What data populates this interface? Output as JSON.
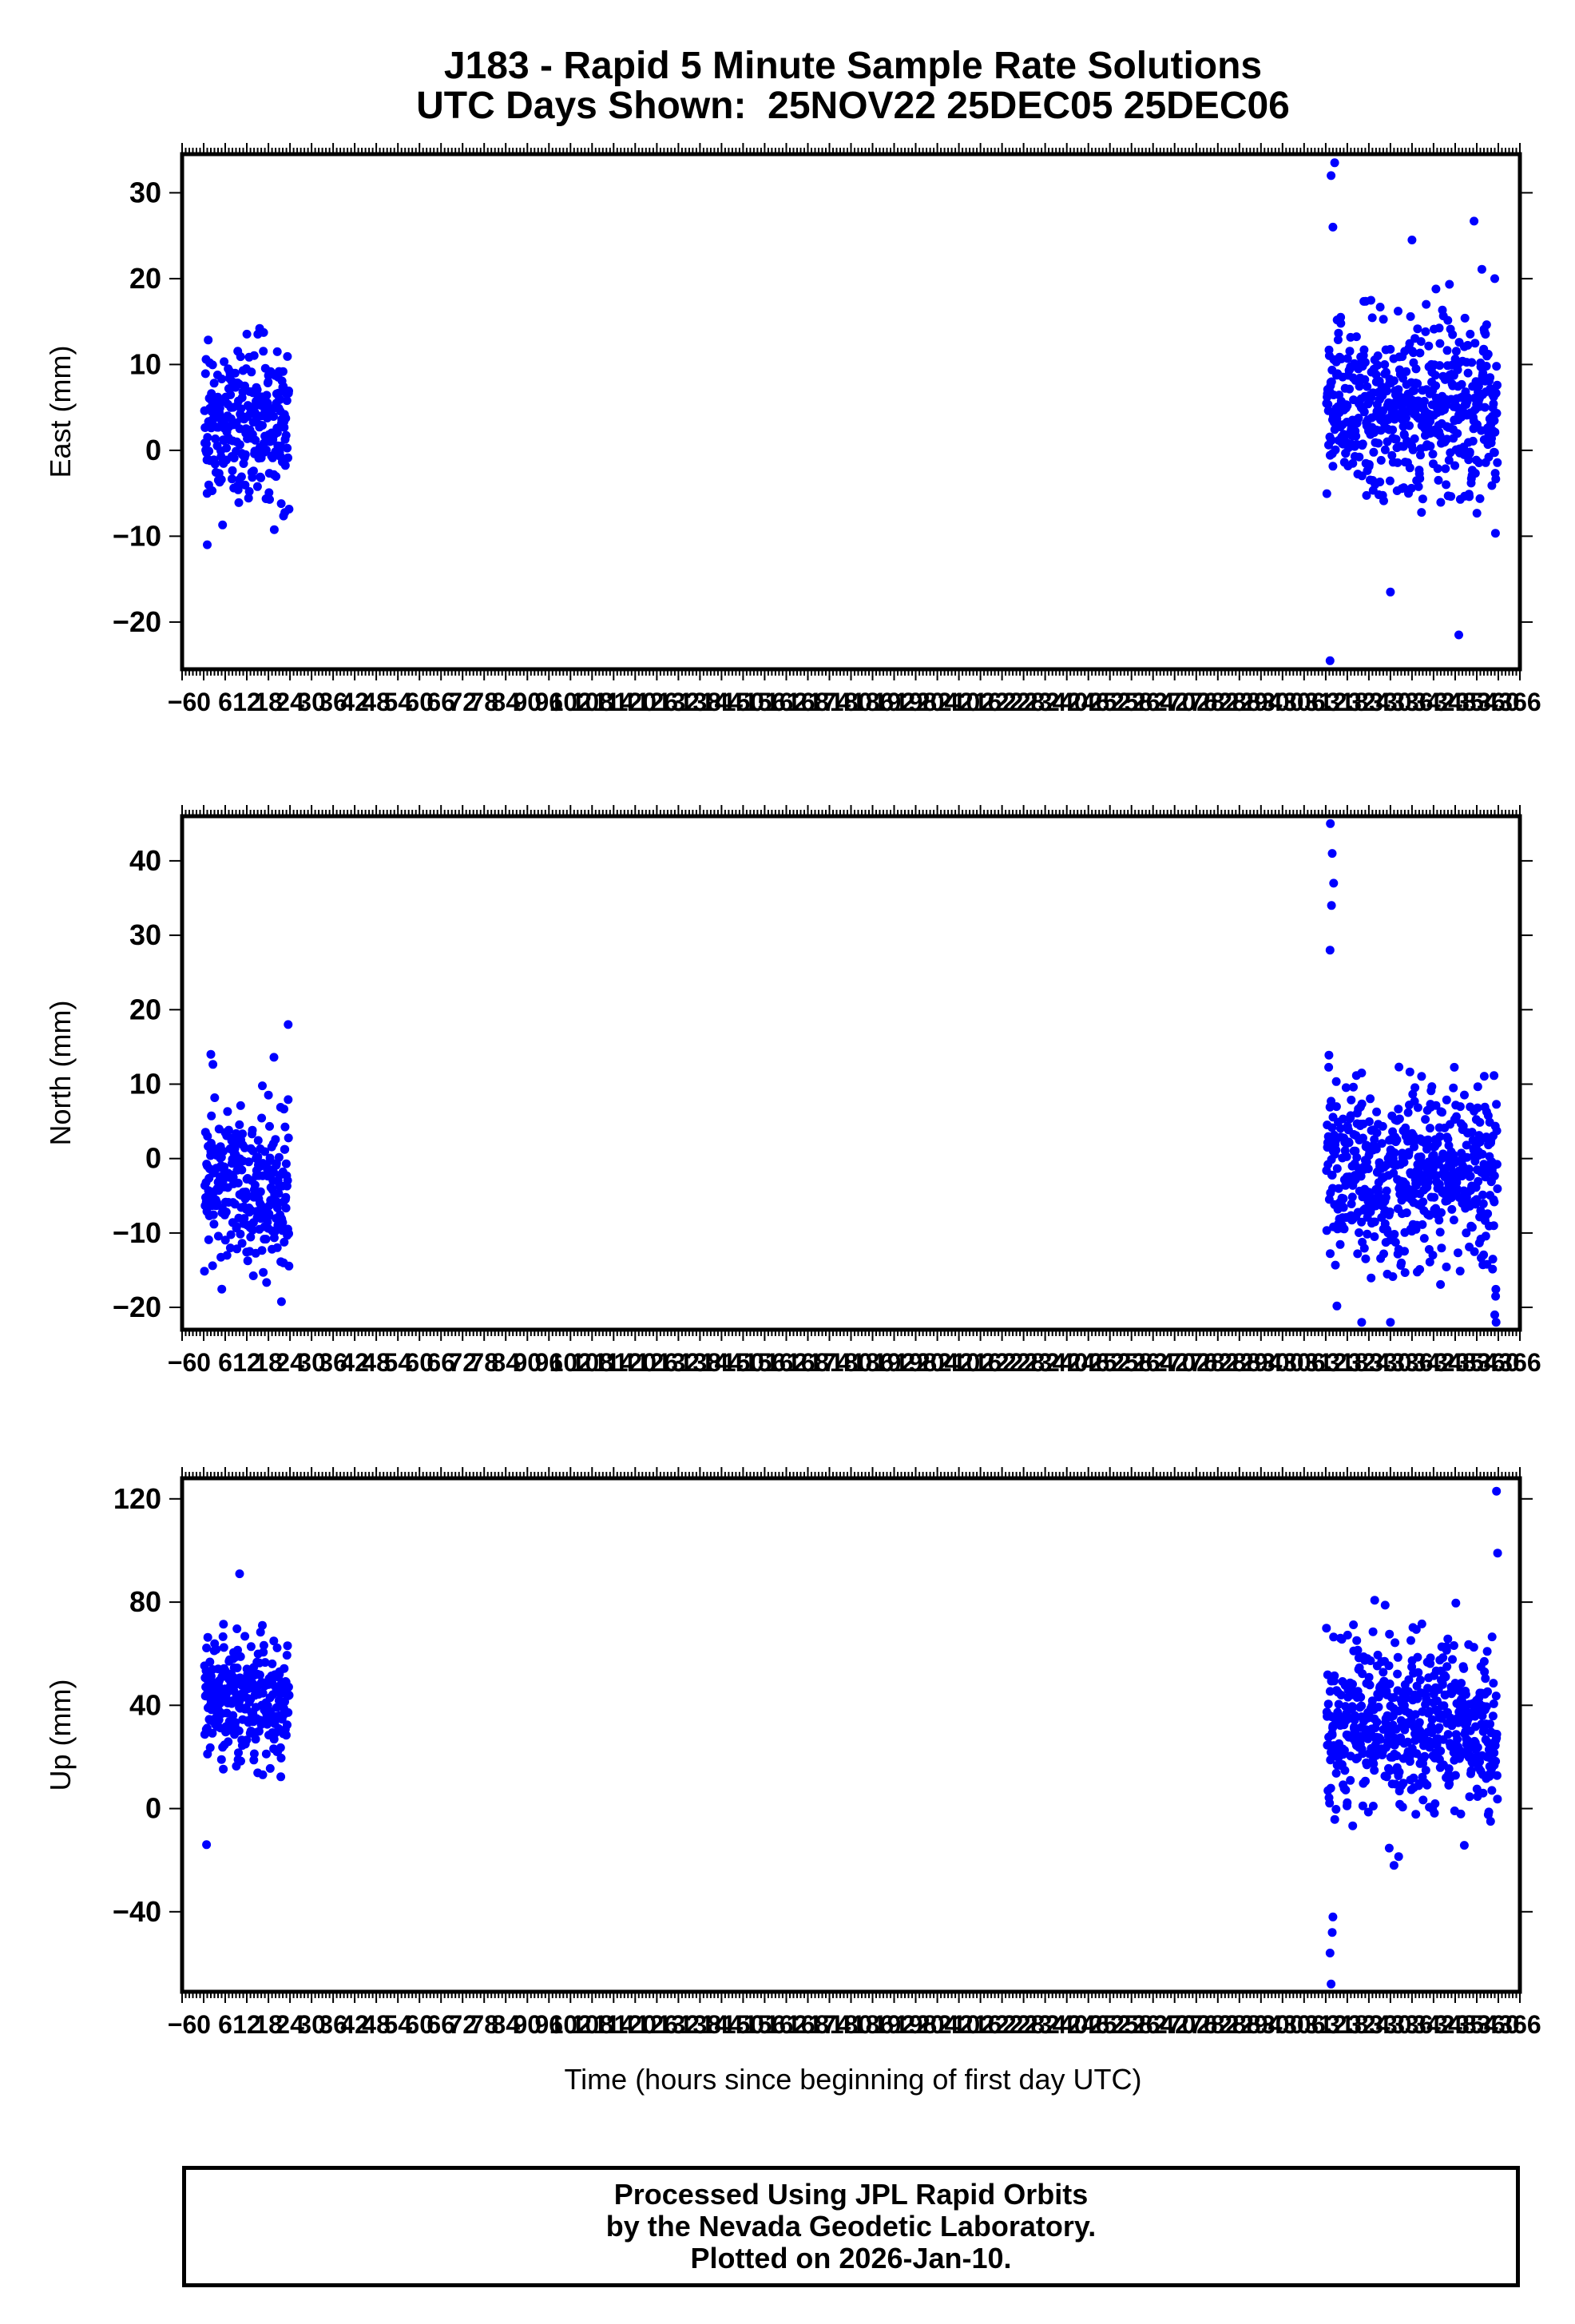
{
  "title": "J183 - Rapid 5 Minute Sample Rate Solutions",
  "subtitle": "UTC Days Shown:  25NOV22 25DEC05 25DEC06",
  "xlabel": "Time (hours since beginning of first day UTC)",
  "footer": {
    "line1": "Processed Using JPL Rapid Orbits",
    "line2": "by the Nevada Geodetic Laboratory.",
    "line3": "Plotted on 2026-Jan-10."
  },
  "colors": {
    "points": "#0000ff",
    "axes": "#000000"
  },
  "chart_data": [
    {
      "type": "scatter",
      "ylabel": "East (mm)",
      "xlim": [
        -6,
        366
      ],
      "ylim": [
        -25.5,
        34.5
      ],
      "yticks": [
        -20,
        -10,
        0,
        10,
        20,
        30
      ],
      "xtick_labels": [
        "-6",
        "0",
        "6",
        "12",
        "18",
        "24",
        "30",
        "36",
        "42",
        "48",
        "54",
        "60",
        "66",
        "72",
        "78",
        "84",
        "90",
        "96",
        "102",
        "108",
        "114",
        "120",
        "126",
        "132",
        "138",
        "144",
        "150",
        "156",
        "162",
        "168",
        "174",
        "180",
        "186",
        "192",
        "198",
        "204",
        "210",
        "216",
        "222",
        "228",
        "234",
        "240",
        "246",
        "252",
        "258",
        "264",
        "270",
        "276",
        "282",
        "288",
        "294",
        "300",
        "306",
        "312",
        "318",
        "324",
        "330",
        "336",
        "342",
        "348",
        "354",
        "360",
        "366"
      ],
      "clusters": [
        {
          "x_range": [
            0.2,
            23.8
          ],
          "y_mean": 3,
          "y_sd": 4.5,
          "y_min": -11,
          "y_max": 15,
          "n": 280
        },
        {
          "x_range": [
            312.2,
            359.8
          ],
          "y_mean": 5,
          "y_sd": 5.2,
          "y_min": -24.5,
          "y_max": 33.5,
          "n": 560
        }
      ],
      "points": [
        [
          1,
          -11
        ],
        [
          313.2,
          -24.5
        ],
        [
          313.5,
          32
        ],
        [
          314.5,
          33.5
        ],
        [
          314,
          26
        ],
        [
          349,
          -21.5
        ],
        [
          330,
          -16.5
        ],
        [
          336,
          24.5
        ],
        [
          359,
          20
        ]
      ]
    },
    {
      "type": "scatter",
      "ylabel": "North (mm)",
      "xlim": [
        -6,
        366
      ],
      "ylim": [
        -23,
        46
      ],
      "yticks": [
        -20,
        -10,
        0,
        10,
        20,
        30,
        40
      ],
      "xtick_labels": [
        "-6",
        "0",
        "6",
        "12",
        "18",
        "24",
        "30",
        "36",
        "42",
        "48",
        "54",
        "60",
        "66",
        "72",
        "78",
        "84",
        "90",
        "96",
        "102",
        "108",
        "114",
        "120",
        "126",
        "132",
        "138",
        "144",
        "150",
        "156",
        "162",
        "168",
        "174",
        "180",
        "186",
        "192",
        "198",
        "204",
        "210",
        "216",
        "222",
        "228",
        "234",
        "240",
        "246",
        "252",
        "258",
        "264",
        "270",
        "276",
        "282",
        "288",
        "294",
        "300",
        "306",
        "312",
        "318",
        "324",
        "330",
        "336",
        "342",
        "348",
        "354",
        "360",
        "366"
      ],
      "clusters": [
        {
          "x_range": [
            0.2,
            23.8
          ],
          "y_mean": -4,
          "y_sd": 5.5,
          "y_min": -20,
          "y_max": 18,
          "n": 280
        },
        {
          "x_range": [
            312.2,
            359.8
          ],
          "y_mean": -2,
          "y_sd": 6,
          "y_min": -22,
          "y_max": 45,
          "n": 560
        }
      ],
      "points": [
        [
          313.3,
          45
        ],
        [
          313.8,
          41
        ],
        [
          314.2,
          37
        ],
        [
          313.6,
          34
        ],
        [
          313.2,
          28
        ],
        [
          23.5,
          18
        ],
        [
          2,
          14
        ],
        [
          322,
          -22
        ],
        [
          330,
          -22
        ],
        [
          359,
          -21
        ]
      ]
    },
    {
      "type": "scatter",
      "ylabel": "Up (mm)",
      "xlim": [
        -6,
        366
      ],
      "ylim": [
        -71,
        128
      ],
      "yticks": [
        -40,
        0,
        40,
        80,
        120
      ],
      "xtick_labels": [
        "-6",
        "0",
        "6",
        "12",
        "18",
        "24",
        "30",
        "36",
        "42",
        "48",
        "54",
        "60",
        "66",
        "72",
        "78",
        "84",
        "90",
        "96",
        "102",
        "108",
        "114",
        "120",
        "126",
        "132",
        "138",
        "144",
        "150",
        "156",
        "162",
        "168",
        "174",
        "180",
        "186",
        "192",
        "198",
        "204",
        "210",
        "216",
        "222",
        "228",
        "234",
        "240",
        "246",
        "252",
        "258",
        "264",
        "270",
        "276",
        "282",
        "288",
        "294",
        "300",
        "306",
        "312",
        "318",
        "324",
        "330",
        "336",
        "342",
        "348",
        "354",
        "360",
        "366"
      ],
      "clusters": [
        {
          "x_range": [
            0.2,
            23.8
          ],
          "y_mean": 42,
          "y_sd": 12,
          "y_min": -14,
          "y_max": 91,
          "n": 280
        },
        {
          "x_range": [
            312.2,
            359.8
          ],
          "y_mean": 32,
          "y_sd": 18,
          "y_min": -68,
          "y_max": 123,
          "n": 560
        }
      ],
      "points": [
        [
          359.5,
          123
        ],
        [
          359.8,
          99
        ],
        [
          313.5,
          -68
        ],
        [
          313.2,
          -56
        ],
        [
          313.8,
          -48
        ],
        [
          314,
          -42
        ],
        [
          0.8,
          -14
        ],
        [
          10,
          91
        ],
        [
          331,
          -22
        ]
      ]
    }
  ]
}
